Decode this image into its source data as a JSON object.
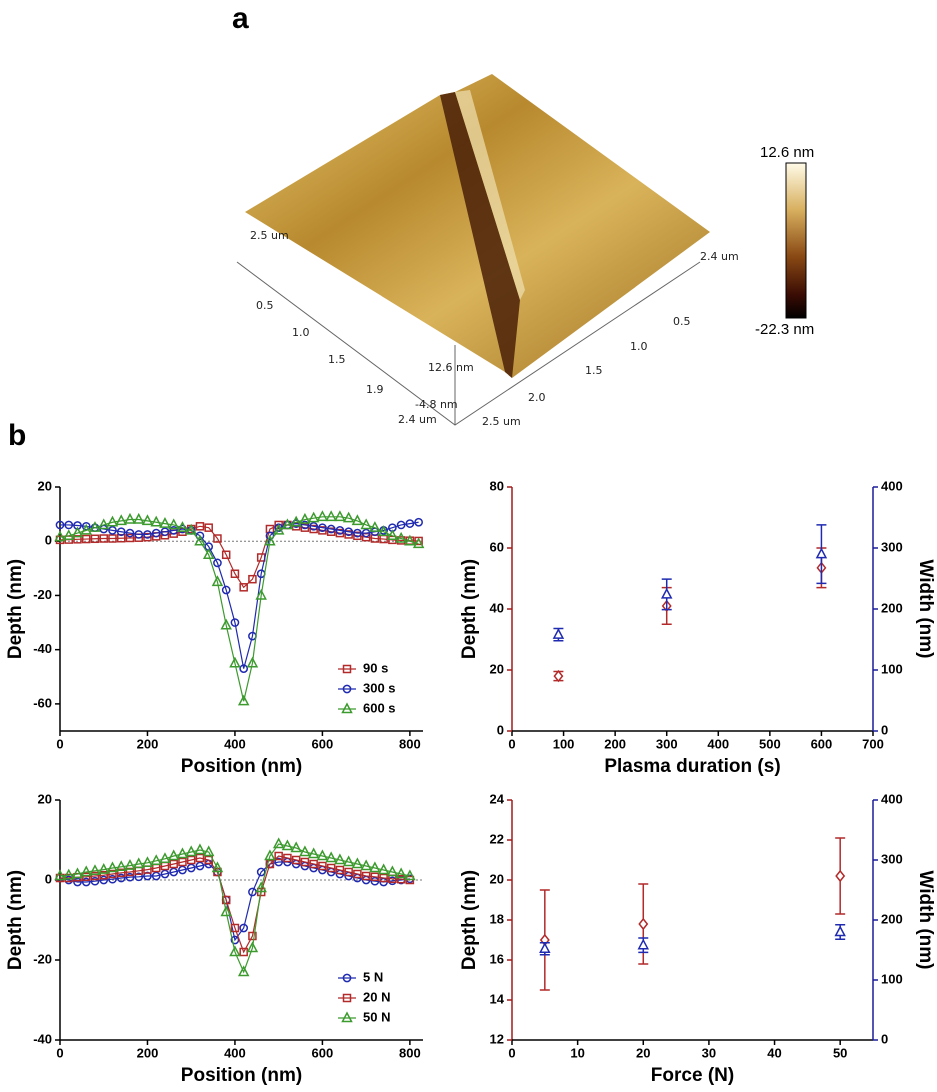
{
  "panel_a": {
    "label": "a",
    "axis_labels": [
      "2.5 um",
      "0.5",
      "1.0",
      "1.5",
      "1.9",
      "2.4 um",
      "12.6 nm",
      "-4.8 nm",
      "2.5 um",
      "2.0",
      "1.5",
      "1.0",
      "0.5",
      "2.4 um"
    ],
    "colorbar": {
      "max_label": "12.6 nm",
      "min_label": "-22.3 nm"
    }
  },
  "panel_b": {
    "label": "b"
  },
  "chart_data": [
    {
      "type": "line",
      "x_label": "Position (nm)",
      "y_label": "Depth (nm)",
      "xlim": [
        0,
        830
      ],
      "xticks": [
        0,
        200,
        400,
        600,
        800
      ],
      "ylim": [
        -70,
        20
      ],
      "yticks": [
        -60,
        -40,
        -20,
        0,
        20
      ],
      "zero_line": 0,
      "legend": "lower right",
      "x": [
        0,
        20,
        40,
        60,
        80,
        100,
        120,
        140,
        160,
        180,
        200,
        220,
        240,
        260,
        280,
        300,
        320,
        340,
        360,
        380,
        400,
        420,
        440,
        460,
        480,
        500,
        520,
        540,
        560,
        580,
        600,
        620,
        640,
        660,
        680,
        700,
        720,
        740,
        760,
        780,
        800,
        820
      ],
      "series": [
        {
          "name": "90 s",
          "color": "#b22a2a",
          "marker": "square",
          "values": [
            0.5,
            0.6,
            0.7,
            0.8,
            0.9,
            1,
            1,
            1.1,
            1.2,
            1.3,
            1.5,
            1.8,
            2.2,
            2.8,
            3.5,
            4.5,
            5.5,
            5,
            1,
            -5,
            -12,
            -17,
            -14,
            -6,
            4.5,
            6,
            6,
            5.5,
            5,
            4.5,
            4,
            3.5,
            3,
            2.5,
            2,
            1.5,
            1,
            0.8,
            0.5,
            0.3,
            0.2,
            0.1
          ]
        },
        {
          "name": "300 s",
          "color": "#1f2ab0",
          "marker": "circle",
          "values": [
            6,
            6,
            5.8,
            5.5,
            5,
            4.5,
            4,
            3.5,
            3,
            2.5,
            2.5,
            3,
            3.5,
            4,
            4.5,
            4,
            2,
            -2,
            -8,
            -18,
            -30,
            -47,
            -35,
            -12,
            2,
            5,
            6,
            6.5,
            6,
            5.5,
            5,
            4.5,
            4,
            3.5,
            3,
            3,
            3.5,
            4,
            5,
            6,
            6.5,
            7
          ]
        },
        {
          "name": "600 s",
          "color": "#3c9a2e",
          "marker": "triangle",
          "values": [
            1.5,
            2,
            3,
            4,
            5,
            6,
            7,
            7.5,
            8,
            8,
            7.5,
            7,
            6.5,
            6,
            5,
            4,
            0,
            -5,
            -15,
            -31,
            -45,
            -59,
            -45,
            -20,
            0,
            4,
            6,
            7,
            8,
            8.5,
            9,
            9,
            9,
            8.5,
            7.5,
            6,
            5,
            3.5,
            2,
            1,
            0,
            -1
          ]
        }
      ]
    },
    {
      "type": "scatter",
      "x_label": "Plasma duration (s)",
      "y_label": "Depth (nm)",
      "y2_label": "Width (nm)",
      "xlim": [
        0,
        700
      ],
      "xticks": [
        0,
        100,
        200,
        300,
        400,
        500,
        600,
        700
      ],
      "ylim": [
        0,
        80
      ],
      "yticks": [
        0,
        20,
        40,
        60,
        80
      ],
      "y2lim": [
        0,
        400
      ],
      "y2ticks": [
        0,
        100,
        200,
        300,
        400
      ],
      "y_color": "#a01c1c",
      "y2_color": "#1c1c9a",
      "x": [
        90,
        300,
        600
      ],
      "series": [
        {
          "color": "#b22a2a",
          "marker": "diamond",
          "values": [
            18,
            41,
            53.5
          ],
          "errors": [
            1.5,
            6,
            6.5
          ]
        },
        {
          "color": "#1f2ab0",
          "marker": "triangle",
          "axis": "y2",
          "values": [
            158,
            224,
            290
          ],
          "errors": [
            10,
            25,
            48
          ]
        }
      ]
    },
    {
      "type": "line",
      "x_label": "Position (nm)",
      "y_label": "Depth (nm)",
      "xlim": [
        0,
        830
      ],
      "xticks": [
        0,
        200,
        400,
        600,
        800
      ],
      "ylim": [
        -40,
        20
      ],
      "yticks": [
        -40,
        -20,
        0,
        20
      ],
      "zero_line": 0,
      "legend": "lower right",
      "x": [
        0,
        20,
        40,
        60,
        80,
        100,
        120,
        140,
        160,
        180,
        200,
        220,
        240,
        260,
        280,
        300,
        320,
        340,
        360,
        380,
        400,
        420,
        440,
        460,
        480,
        500,
        520,
        540,
        560,
        580,
        600,
        620,
        640,
        660,
        680,
        700,
        720,
        740,
        760,
        780,
        800
      ],
      "series": [
        {
          "name": "5 N",
          "color": "#1f2ab0",
          "marker": "circle",
          "values": [
            0.5,
            0,
            -0.5,
            -0.5,
            -0.3,
            0,
            0.2,
            0.5,
            0.7,
            0.8,
            1,
            1,
            1.5,
            2,
            2.5,
            3,
            3.5,
            4,
            2,
            -5,
            -15,
            -12,
            -3,
            2,
            4,
            4.5,
            4.5,
            4,
            3.5,
            3,
            2.5,
            2,
            1.5,
            1,
            0.5,
            0,
            -0.3,
            -0.5,
            -0.2,
            0,
            0.3
          ]
        },
        {
          "name": "20 N",
          "color": "#b22a2a",
          "marker": "square",
          "values": [
            0.5,
            0.5,
            0.7,
            0.8,
            1,
            1.2,
            1.5,
            1.8,
            2,
            2.3,
            2.6,
            3,
            3.5,
            4,
            4.5,
            5,
            5.5,
            5,
            2,
            -5,
            -12,
            -18,
            -14,
            -3,
            4,
            6,
            5.5,
            5,
            4.5,
            4,
            3.5,
            3,
            2.5,
            2,
            1.5,
            1,
            0.8,
            0.5,
            0.3,
            0.2,
            0
          ]
        },
        {
          "name": "50 N",
          "color": "#3c9a2e",
          "marker": "triangle",
          "values": [
            1,
            1.2,
            1.5,
            2,
            2.3,
            2.6,
            3,
            3.3,
            3.6,
            4,
            4.3,
            4.8,
            5.3,
            6,
            6.5,
            7,
            7.5,
            7,
            3,
            -8,
            -18,
            -23,
            -17,
            -2,
            6,
            9,
            8.5,
            8,
            7,
            6.5,
            6,
            5.5,
            5,
            4.5,
            4,
            3.5,
            3,
            2.5,
            2,
            1.5,
            1
          ]
        }
      ]
    },
    {
      "type": "scatter",
      "x_label": "Force (N)",
      "y_label": "Depth (nm)",
      "y2_label": "Width (nm)",
      "xlim": [
        0,
        55
      ],
      "xticks": [
        0,
        10,
        20,
        30,
        40,
        50
      ],
      "ylim": [
        12,
        24
      ],
      "yticks": [
        12,
        14,
        16,
        18,
        20,
        22,
        24
      ],
      "y2lim": [
        0,
        400
      ],
      "y2ticks": [
        0,
        100,
        200,
        300,
        400
      ],
      "y_color": "#a01c1c",
      "y2_color": "#1c1c9a",
      "x": [
        5,
        20,
        50
      ],
      "series": [
        {
          "color": "#b22a2a",
          "marker": "diamond",
          "values": [
            17,
            17.8,
            20.2
          ],
          "errors": [
            2.5,
            2,
            1.9
          ]
        },
        {
          "color": "#1f2ab0",
          "marker": "triangle",
          "axis": "y2",
          "values": [
            152,
            158,
            180
          ],
          "errors": [
            10,
            12,
            12
          ]
        }
      ]
    }
  ]
}
